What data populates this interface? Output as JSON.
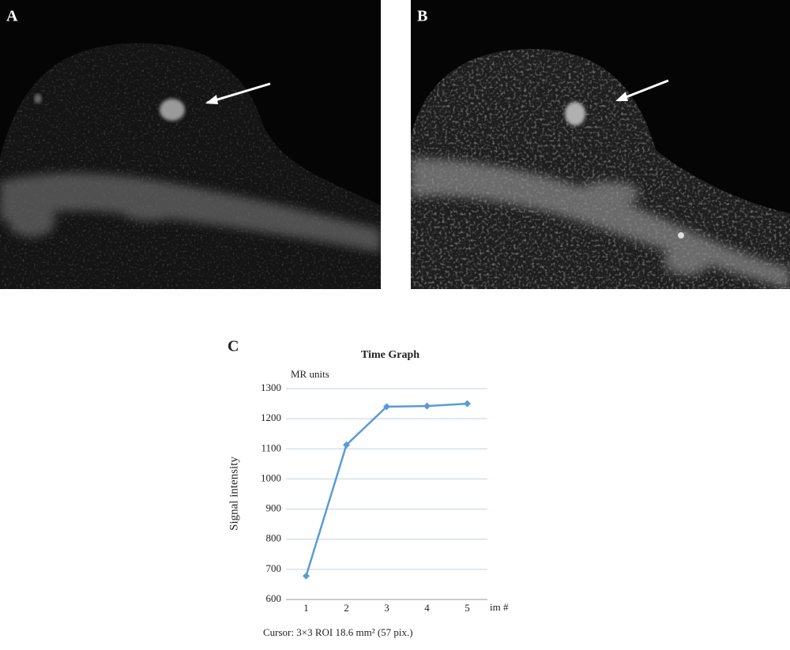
{
  "figure": {
    "panel_labels": [
      "A",
      "B",
      "C"
    ]
  },
  "chart_data": {
    "type": "line",
    "title": "Time Graph",
    "y_unit_label": "MR units",
    "ylabel": "Signal intensity",
    "xlabel": "im #",
    "footer": "Cursor: 3×3 ROI  18.6 mm² (57 pix.)",
    "categories": [
      "1",
      "2",
      "3",
      "4",
      "5"
    ],
    "values": [
      678,
      1113,
      1240,
      1242,
      1250
    ],
    "color": "#5b9bd5",
    "ylim": [
      600,
      1300
    ],
    "yticks": [
      600,
      700,
      800,
      900,
      1000,
      1100,
      1200,
      1300
    ],
    "grid": true
  }
}
